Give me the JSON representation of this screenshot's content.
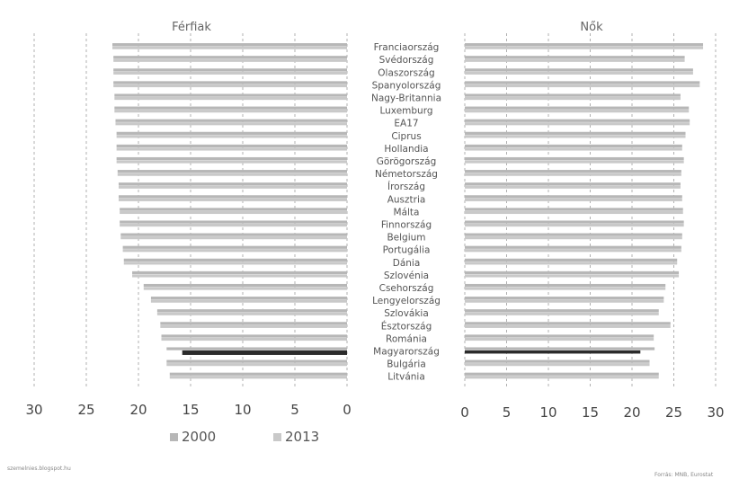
{
  "chart_data": [
    {
      "type": "bar",
      "title": "Férfiak",
      "x_reversed": true,
      "xlim": [
        0,
        30
      ],
      "xticks": [
        "30",
        "25",
        "20",
        "15",
        "10",
        "5",
        "0"
      ],
      "categories": [
        "Franciaország",
        "Svédország",
        "Olaszország",
        "Spanyolország",
        "Nagy-Britannia",
        "Luxemburg",
        "EA17",
        "Ciprus",
        "Hollandia",
        "Görögország",
        "Németország",
        "Írország",
        "Ausztria",
        "Málta",
        "Finnország",
        "Belgium",
        "Portugália",
        "Dánia",
        "Szlovénia",
        "Csehország",
        "Lengyelország",
        "Szlovákia",
        "Észtország",
        "Románia",
        "Magyarország",
        "Bulgária",
        "Litvánia"
      ],
      "series": [
        {
          "name": "2000",
          "values": [
            22.5,
            22.4,
            22.4,
            22.4,
            22.3,
            22.3,
            22.2,
            22.1,
            22.1,
            22.1,
            22.0,
            21.9,
            21.9,
            21.8,
            21.8,
            21.7,
            21.5,
            21.4,
            20.6,
            19.5,
            18.8,
            18.2,
            17.9,
            17.8,
            17.3,
            17.3,
            17.0
          ]
        },
        {
          "name": "2013",
          "values": [
            22.5,
            22.4,
            22.4,
            22.4,
            22.3,
            22.3,
            22.2,
            22.1,
            22.1,
            22.1,
            22.0,
            21.9,
            21.9,
            21.8,
            21.8,
            21.7,
            21.5,
            21.4,
            20.6,
            19.5,
            18.8,
            18.2,
            17.9,
            17.8,
            15.8,
            17.3,
            17.0
          ]
        }
      ]
    },
    {
      "type": "bar",
      "title": "Nők",
      "xlim": [
        0,
        30
      ],
      "xticks": [
        "0",
        "5",
        "10",
        "15",
        "20",
        "25",
        "30"
      ],
      "categories": [
        "Franciaország",
        "Svédország",
        "Olaszország",
        "Spanyolország",
        "Nagy-Britannia",
        "Luxemburg",
        "EA17",
        "Ciprus",
        "Hollandia",
        "Görögország",
        "Németország",
        "Írország",
        "Ausztria",
        "Málta",
        "Finnország",
        "Belgium",
        "Portugália",
        "Dánia",
        "Szlovénia",
        "Csehország",
        "Lengyelország",
        "Szlovákia",
        "Észtország",
        "Románia",
        "Magyarország",
        "Bulgária",
        "Litvánia"
      ],
      "series": [
        {
          "name": "2000",
          "values": [
            28.5,
            26.3,
            27.3,
            28.1,
            25.8,
            26.8,
            26.9,
            26.4,
            26.0,
            26.2,
            25.9,
            25.8,
            26.0,
            26.1,
            26.2,
            26.0,
            25.9,
            25.4,
            25.6,
            24.0,
            23.8,
            23.2,
            24.6,
            22.6,
            22.7,
            22.1,
            23.2
          ]
        },
        {
          "name": "2013",
          "values": [
            28.5,
            26.3,
            27.3,
            28.1,
            25.8,
            26.8,
            26.9,
            26.4,
            26.0,
            26.2,
            25.9,
            25.8,
            26.0,
            26.1,
            26.2,
            26.0,
            25.9,
            25.4,
            25.6,
            24.0,
            23.8,
            23.2,
            24.6,
            22.6,
            21.0,
            22.1,
            23.2
          ]
        }
      ]
    }
  ],
  "legend": {
    "items": [
      "2000",
      "2013"
    ]
  },
  "footer": {
    "left": "szemelnies.blogspot.hu",
    "right": "Forrás: MNB, Eurostat"
  },
  "colors": {
    "bar_2000": "#b7b7b7",
    "bar_2013": "#c9c9c9",
    "highlight": "#2b2b2b",
    "grid": "#b0b0b0"
  }
}
